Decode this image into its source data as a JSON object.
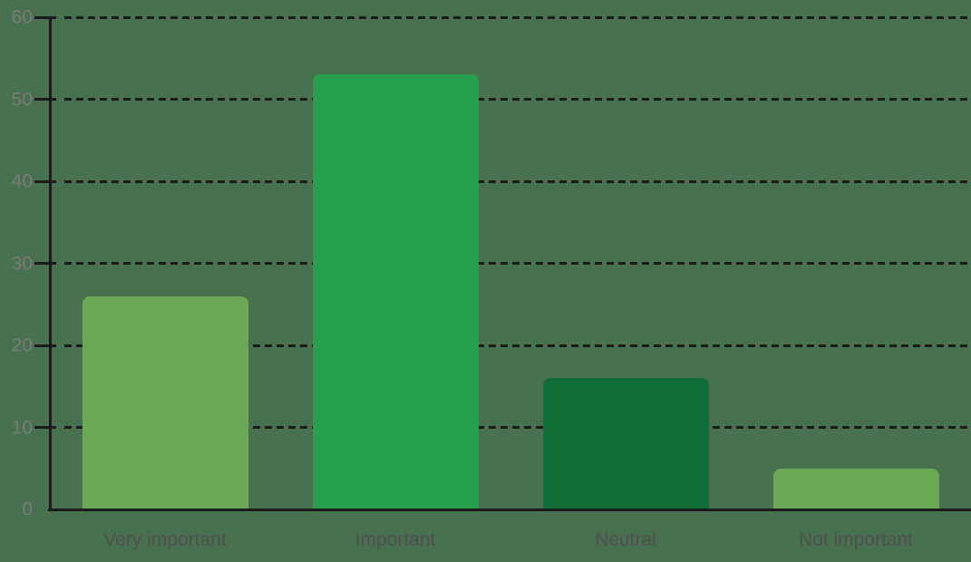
{
  "chart_data": {
    "type": "bar",
    "title": "",
    "xlabel": "",
    "ylabel": "",
    "categories": [
      "Very important",
      "Important",
      "Neutral",
      "Not important"
    ],
    "values": [
      26,
      53,
      16,
      5
    ],
    "bar_colors": [
      "#6BA954",
      "#27A04E",
      "#0F6D36",
      "#6BA954"
    ],
    "ylim": [
      0,
      60
    ],
    "yticks": [
      0,
      10,
      20,
      30,
      40,
      50,
      60
    ],
    "grid": "horizontal-dashed",
    "legend": "none",
    "colors": {
      "background": "#47714F",
      "grid_line": "#1B1B1B",
      "axis_line": "#1B1B1B",
      "tick_label_color": "#7B7B7B",
      "category_label_color": "#4F4F4F"
    }
  }
}
